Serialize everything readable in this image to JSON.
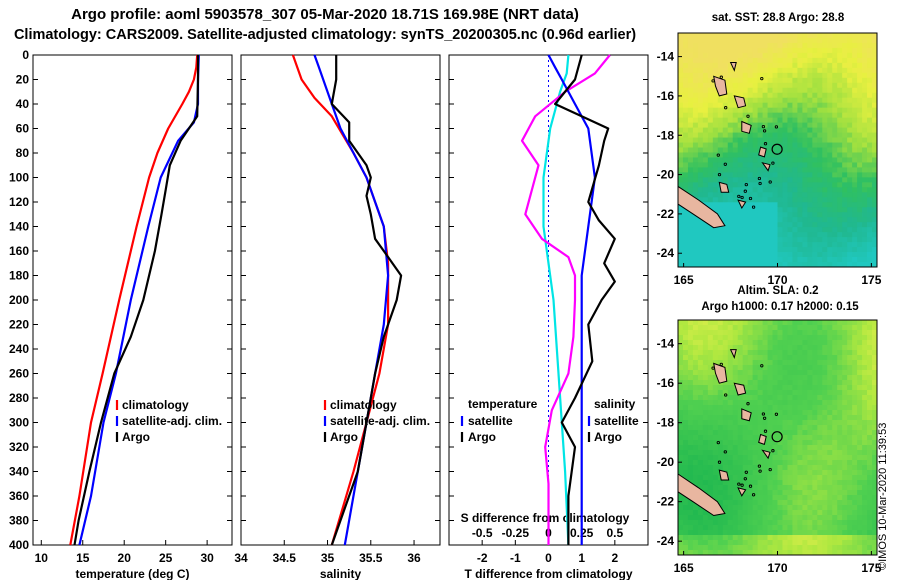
{
  "header": {
    "title_line1": "Argo profile: aoml 5903578_307 05-Mar-2020 18.71S 169.98E (NRT data)",
    "title_line2": "Climatology: CARS2009. Satellite-adjusted climatology: synTS_20200305.nc (0.96d earlier)"
  },
  "maps": {
    "sst_title": "sat. SST: 28.8 Argo: 28.8",
    "sla_title": "Altim. SLA: 0.2",
    "height_title": "Argo h1000: 0.17 h2000: 0.15",
    "watermark": "©IMOS 10-Mar-2020 11:39:53",
    "lon_ticks": [
      "165",
      "170",
      "175"
    ],
    "lat_ticks": [
      "-14",
      "-16",
      "-18",
      "-20",
      "-22",
      "-24"
    ],
    "lon_range": [
      164.7,
      175.3
    ],
    "lat_range": [
      -24.7,
      -12.8
    ],
    "argo_position": {
      "lon": 169.98,
      "lat": -18.71
    },
    "colors": {
      "land": "#e8b6a0",
      "coast": "#000000"
    }
  },
  "chart_data": [
    {
      "type": "line",
      "id": "temperature",
      "xlabel": "temperature (deg C)",
      "ylabel": "",
      "xlim": [
        9,
        33
      ],
      "ylim": [
        0,
        400
      ],
      "xticks": [
        "10",
        "15",
        "20",
        "25",
        "30"
      ],
      "yticks": [
        "0",
        "20",
        "40",
        "60",
        "80",
        "100",
        "120",
        "140",
        "160",
        "180",
        "200",
        "220",
        "240",
        "260",
        "280",
        "300",
        "320",
        "340",
        "360",
        "380",
        "400"
      ],
      "legend": [
        "climatology",
        "satellite-adj. clim.",
        "Argo"
      ],
      "series": [
        {
          "name": "climatology",
          "color": "#ff0000",
          "depth": [
            0,
            10,
            20,
            30,
            40,
            60,
            80,
            100,
            140,
            200,
            260,
            300,
            360,
            400
          ],
          "values": [
            28.8,
            28.7,
            28.4,
            27.8,
            27.0,
            25.3,
            24.0,
            23.0,
            21.5,
            19.4,
            17.4,
            16.0,
            14.6,
            13.5
          ]
        },
        {
          "name": "satellite-adj. clim.",
          "color": "#0000ff",
          "depth": [
            0,
            20,
            40,
            55,
            70,
            100,
            140,
            200,
            260,
            300,
            360,
            400
          ],
          "values": [
            29.0,
            28.9,
            28.9,
            28.4,
            26.5,
            24.4,
            22.9,
            20.8,
            19.0,
            17.5,
            16.0,
            14.6
          ]
        },
        {
          "name": "Argo",
          "color": "#000000",
          "depth": [
            0,
            20,
            50,
            70,
            90,
            110,
            130,
            160,
            200,
            230,
            260,
            300,
            340,
            380,
            400
          ],
          "values": [
            28.9,
            28.9,
            28.8,
            26.8,
            25.5,
            25.0,
            24.5,
            23.7,
            22.3,
            20.8,
            18.8,
            17.2,
            15.8,
            14.5,
            14.0
          ]
        }
      ]
    },
    {
      "type": "line",
      "id": "salinity",
      "xlabel": "salinity",
      "ylabel": "",
      "xlim": [
        34,
        36.3
      ],
      "ylim": [
        0,
        400
      ],
      "xticks": [
        "34",
        "34.5",
        "35",
        "35.5",
        "36"
      ],
      "legend": [
        "climatology",
        "satellite-adj. clim.",
        "Argo"
      ],
      "series": [
        {
          "name": "climatology",
          "color": "#ff0000",
          "depth": [
            0,
            20,
            35,
            50,
            80,
            100,
            120,
            140,
            170,
            220,
            260,
            300,
            340,
            400
          ],
          "values": [
            34.6,
            34.7,
            34.85,
            35.05,
            35.3,
            35.45,
            35.55,
            35.65,
            35.7,
            35.7,
            35.6,
            35.45,
            35.3,
            35.05
          ]
        },
        {
          "name": "satellite-adj. clim.",
          "color": "#0000ff",
          "depth": [
            0,
            10,
            40,
            60,
            100,
            140,
            180,
            220,
            260,
            300,
            340,
            400
          ],
          "values": [
            34.85,
            34.9,
            35.05,
            35.15,
            35.45,
            35.65,
            35.7,
            35.65,
            35.55,
            35.45,
            35.35,
            35.2
          ]
        },
        {
          "name": "Argo",
          "color": "#000000",
          "depth": [
            0,
            20,
            40,
            55,
            70,
            90,
            100,
            115,
            130,
            150,
            160,
            180,
            200,
            230,
            260,
            300,
            340,
            400
          ],
          "values": [
            35.1,
            35.1,
            35.05,
            35.25,
            35.25,
            35.45,
            35.5,
            35.45,
            35.5,
            35.55,
            35.65,
            35.85,
            35.8,
            35.65,
            35.55,
            35.45,
            35.35,
            35.05
          ]
        }
      ]
    },
    {
      "type": "line",
      "id": "difference",
      "xlabel": "T difference from climatology",
      "ylabel": "",
      "xlim": [
        -3,
        3.0
      ],
      "ylim": [
        0,
        400
      ],
      "xticks": [
        "-2",
        "-1",
        "0",
        "1",
        "2"
      ],
      "top_axis_label": "S difference from climatology",
      "top_ticks": [
        "-0.5",
        "-0.25",
        "0",
        "0.25",
        "0.5"
      ],
      "s_scale": 4,
      "legend_left": {
        "heading": "temperature",
        "items": [
          "satellite",
          "Argo"
        ]
      },
      "legend_right": {
        "heading": "salinity",
        "items": [
          "satellite",
          "Argo"
        ]
      },
      "series": [
        {
          "name": "temperature satellite",
          "color": "#00e5e5",
          "depth": [
            0,
            15,
            30,
            60,
            100,
            140,
            200,
            260,
            300,
            340,
            400
          ],
          "values": [
            0.6,
            0.55,
            0.35,
            0.05,
            -0.15,
            -0.15,
            0.15,
            0.3,
            0.4,
            0.5,
            0.6
          ]
        },
        {
          "name": "temperature Argo",
          "color": "#ff00ff",
          "depth": [
            0,
            15,
            30,
            50,
            70,
            90,
            110,
            130,
            150,
            165,
            180,
            200,
            230,
            260,
            290,
            320,
            350,
            400
          ],
          "values": [
            1.85,
            1.4,
            0.5,
            -0.4,
            -0.8,
            -0.3,
            -0.5,
            -0.7,
            -0.2,
            0.6,
            0.8,
            0.8,
            0.75,
            0.6,
            0.1,
            -0.1,
            0.0,
            0.0
          ]
        },
        {
          "name": "salinity satellite",
          "color": "#0000ff",
          "depth": [
            0,
            10,
            20,
            40,
            60,
            100,
            140,
            180,
            220,
            260,
            300,
            340,
            400
          ],
          "values": [
            0.0,
            0.05,
            0.1,
            0.2,
            0.3,
            0.35,
            0.3,
            0.25,
            0.25,
            0.25,
            0.25,
            0.25,
            0.25
          ]
        },
        {
          "name": "salinity Argo",
          "color": "#000000",
          "depth": [
            0,
            20,
            40,
            60,
            70,
            90,
            120,
            135,
            150,
            170,
            185,
            200,
            220,
            250,
            280,
            300,
            320,
            360,
            400
          ],
          "values": [
            0.25,
            0.2,
            0.05,
            0.45,
            0.42,
            0.38,
            0.3,
            0.38,
            0.5,
            0.42,
            0.5,
            0.4,
            0.3,
            0.33,
            0.2,
            0.1,
            0.2,
            0.15,
            0.15
          ]
        }
      ]
    }
  ]
}
